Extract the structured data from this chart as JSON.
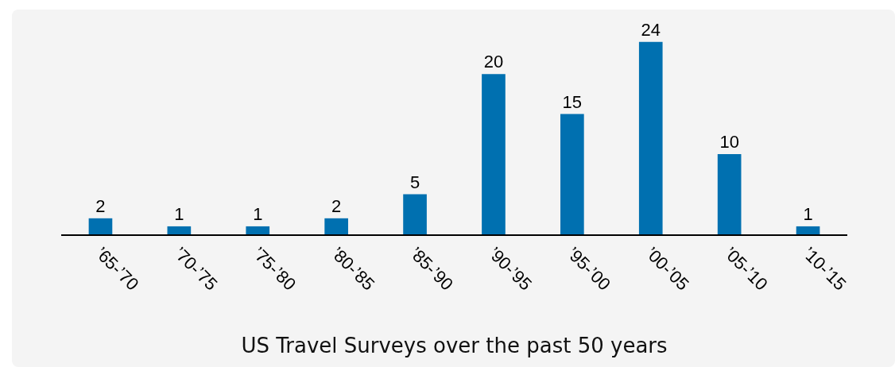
{
  "chart_data": {
    "type": "bar",
    "title": "US Travel Surveys over the past 50 years",
    "categories": [
      "’65-’70",
      "’70-’75",
      "’75-’80",
      "’80-’85",
      "’85-’90",
      "’90-’95",
      "’95-’00",
      "’00-’05",
      "’05-’10",
      "’10-’15"
    ],
    "values": [
      2,
      1,
      1,
      2,
      5,
      20,
      15,
      24,
      10,
      1
    ],
    "color": "#0070b0",
    "data_labels": true,
    "grid": false,
    "legend": false
  }
}
